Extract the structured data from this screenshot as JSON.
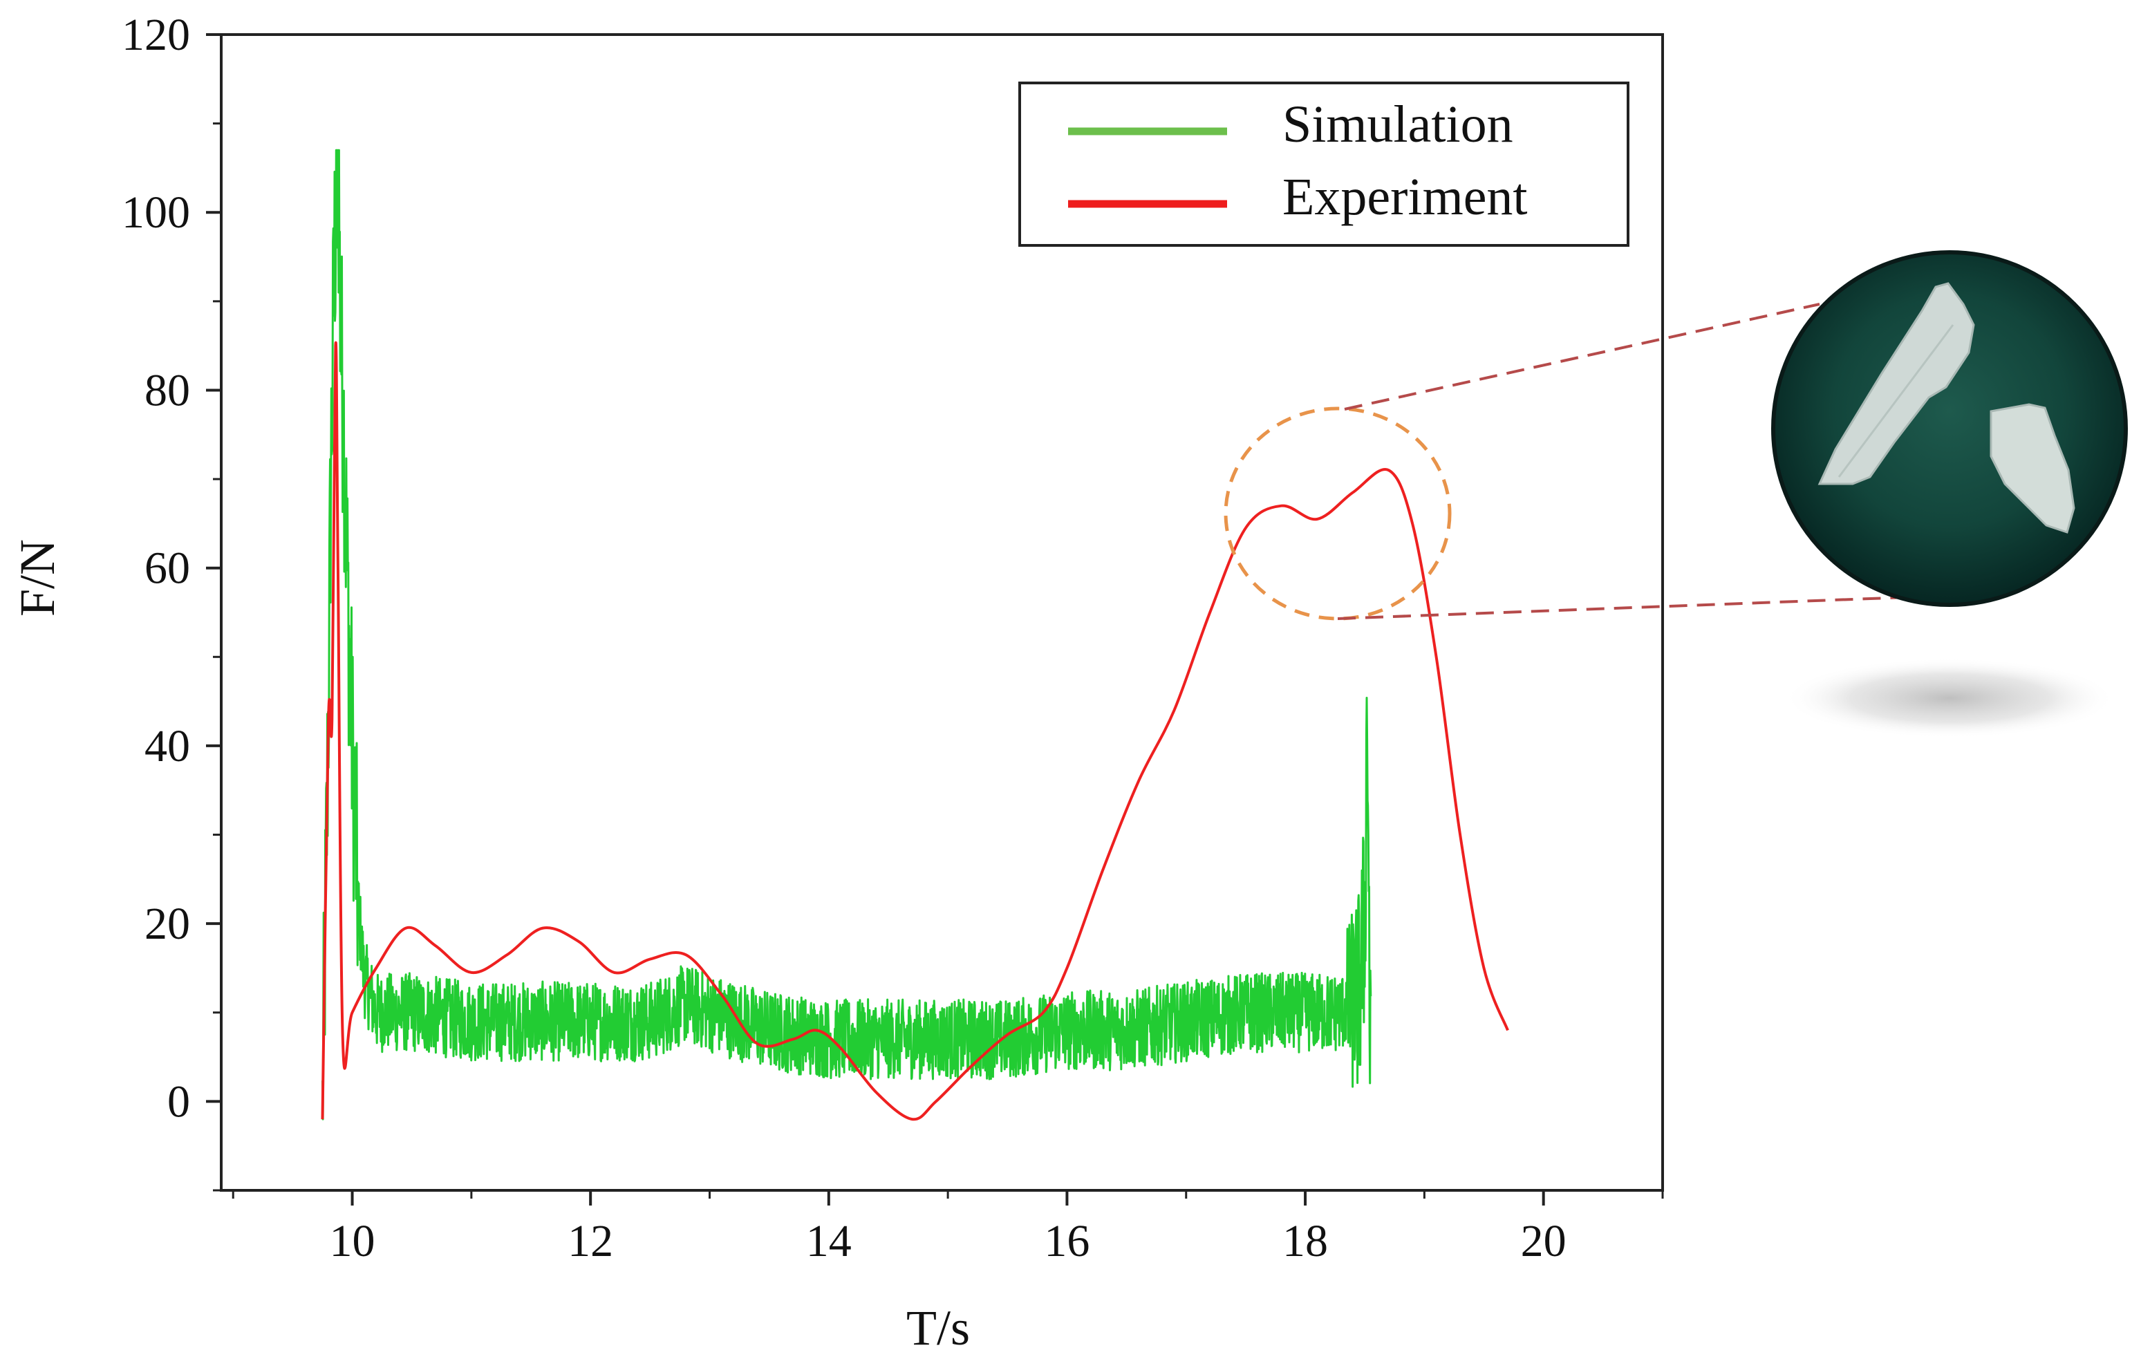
{
  "chart_data": {
    "type": "line",
    "xlabel": "T/s",
    "ylabel": "F/N",
    "xlim": [
      8.9,
      21.0
    ],
    "ylim": [
      -10,
      120
    ],
    "x_ticks": [
      10,
      12,
      14,
      16,
      18,
      20
    ],
    "y_ticks": [
      0,
      20,
      40,
      60,
      80,
      100,
      120
    ],
    "legend_position": "top-right",
    "series": [
      {
        "name": "Simulation",
        "color": "#22cc33",
        "noisy": true,
        "x": [
          9.75,
          9.8,
          9.82,
          9.85,
          9.88,
          9.9,
          9.93,
          9.96,
          10.0,
          10.05,
          10.1,
          10.2,
          10.5,
          11.0,
          11.5,
          12.0,
          12.5,
          12.8,
          13.0,
          13.5,
          14.0,
          14.5,
          15.0,
          15.5,
          16.0,
          16.5,
          17.0,
          17.5,
          18.0,
          18.3,
          18.45,
          18.5,
          18.52,
          18.55
        ],
        "y": [
          -2,
          44,
          70,
          95,
          107,
          88,
          75,
          58,
          40,
          22,
          14,
          10,
          10,
          9,
          9,
          9,
          9,
          11,
          10,
          8,
          7,
          7,
          7,
          7,
          8,
          8,
          9,
          10,
          10,
          10,
          12,
          20,
          45,
          -2
        ],
        "peak": 107,
        "noise_band": [
          3,
          18
        ]
      },
      {
        "name": "Experiment",
        "color": "#ee2020",
        "noisy": false,
        "x": [
          9.75,
          9.8,
          9.83,
          9.86,
          9.88,
          9.92,
          10.0,
          10.2,
          10.45,
          10.7,
          11.0,
          11.3,
          11.6,
          11.9,
          12.2,
          12.5,
          12.8,
          13.1,
          13.4,
          13.7,
          13.9,
          14.1,
          14.4,
          14.7,
          14.9,
          15.2,
          15.5,
          15.8,
          16.0,
          16.3,
          16.6,
          16.9,
          17.2,
          17.5,
          17.8,
          18.1,
          18.4,
          18.7,
          18.9,
          19.1,
          19.3,
          19.5,
          19.7
        ],
        "y": [
          -2,
          43,
          43,
          85,
          60,
          7,
          10,
          15,
          19.5,
          17.5,
          14.5,
          16.5,
          19.5,
          18,
          14.5,
          16,
          16.5,
          12,
          6.5,
          7,
          8,
          6,
          1,
          -2,
          0,
          4,
          7.5,
          10,
          15,
          26,
          36,
          44,
          55,
          64.5,
          67,
          65.5,
          68.5,
          71,
          65,
          50,
          30,
          15,
          8
        ]
      }
    ],
    "annotations": [
      {
        "type": "dashed-circle",
        "label": "highlighted peak region",
        "center": [
          18.3,
          66
        ]
      },
      {
        "type": "inset-photo",
        "label": "fractured fragments photo"
      }
    ]
  },
  "legend": {
    "items": [
      {
        "label": "Simulation",
        "color": "#6cbf4c"
      },
      {
        "label": "Experiment",
        "color": "#ee1d1d"
      }
    ]
  },
  "colors": {
    "simulation_line": "#22cc33",
    "experiment_line": "#ee2020",
    "annotation_circle": "#e8934a",
    "connector_lines": "#b54a4a",
    "photo_background": "#0f3a33"
  }
}
